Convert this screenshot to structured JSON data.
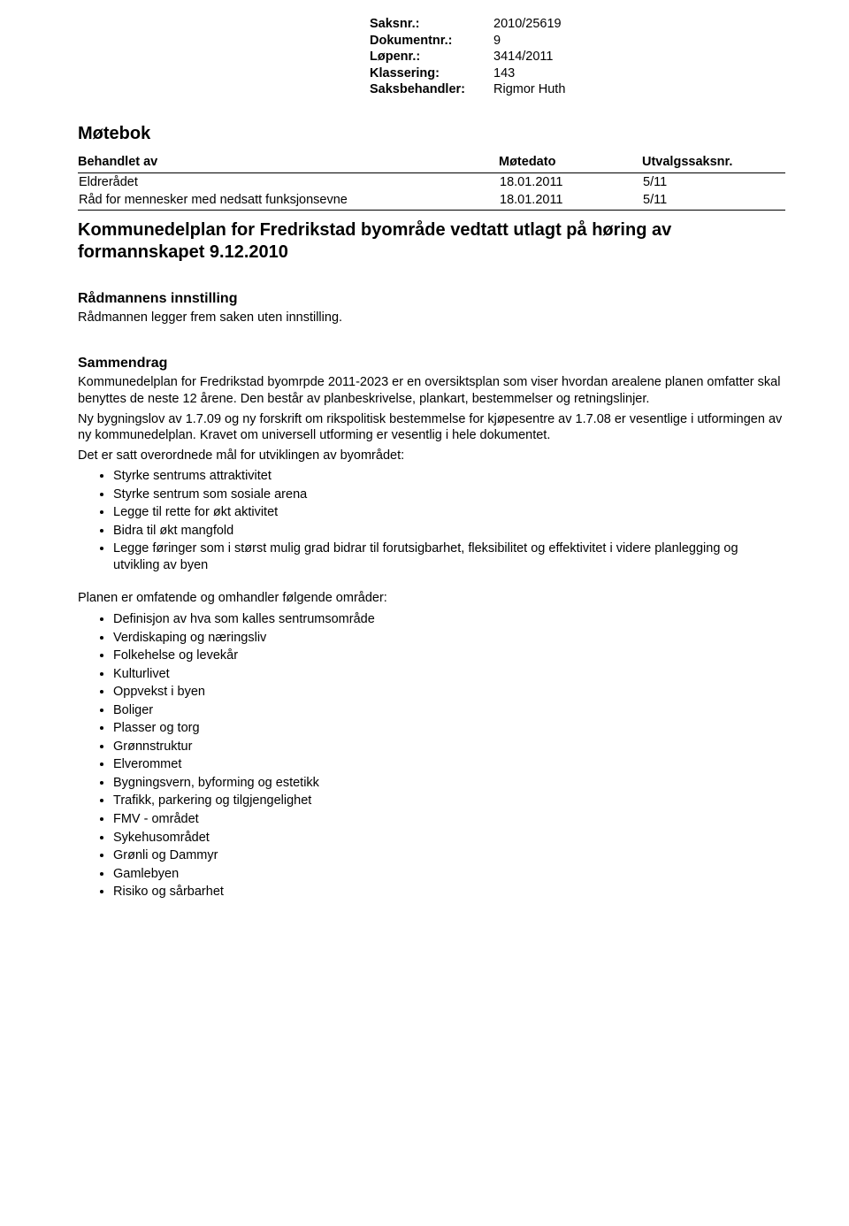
{
  "meta": {
    "rows": [
      {
        "label": "Saksnr.:",
        "value": "2010/25619"
      },
      {
        "label": "Dokumentnr.:",
        "value": "9"
      },
      {
        "label": "Løpenr.:",
        "value": "3414/2011"
      },
      {
        "label": "Klassering:",
        "value": "143"
      },
      {
        "label": "Saksbehandler:",
        "value": "Rigmor Huth"
      }
    ]
  },
  "motebok": {
    "heading": "Møtebok",
    "columns": [
      "Behandlet av",
      "Møtedato",
      "Utvalgssaksnr."
    ],
    "rows": [
      {
        "body": "Eldrerådet",
        "date": "18.01.2011",
        "caseno": "5/11"
      },
      {
        "body": "Råd for mennesker med nedsatt funksjonsevne",
        "date": "18.01.2011",
        "caseno": "5/11"
      }
    ]
  },
  "title": "Kommunedelplan for Fredrikstad byområde vedtatt utlagt på høring av formannskapet 9.12.2010",
  "innstilling": {
    "heading": "Rådmannens innstilling",
    "text": "Rådmannen legger frem saken uten innstilling."
  },
  "sammendrag": {
    "heading": "Sammendrag",
    "para1": "Kommunedelplan for Fredrikstad byomrpde 2011-2023 er en oversiktsplan som viser hvordan arealene planen omfatter skal benyttes de neste 12 årene. Den består av planbeskrivelse, plankart, bestemmelser og retningslinjer.",
    "para2": "Ny bygningslov av 1.7.09 og ny forskrift om rikspolitisk bestemmelse for kjøpesentre av 1.7.08 er vesentlige i utformingen av ny kommunedelplan. Kravet om universell utforming er vesentlig i hele dokumentet.",
    "para3": "Det er satt overordnede mål for utviklingen av byområdet:",
    "goals": [
      "Styrke sentrums attraktivitet",
      "Styrke sentrum som sosiale arena",
      "Legge til rette for økt aktivitet",
      "Bidra til økt mangfold",
      "Legge føringer som i størst mulig grad bidrar til forutsigbarhet, fleksibilitet og effektivitet i videre planlegging og utvikling av byen"
    ],
    "areas_intro": "Planen er omfatende og omhandler følgende områder:",
    "areas": [
      "Definisjon av hva som kalles sentrumsområde",
      "Verdiskaping og næringsliv",
      "Folkehelse og levekår",
      "Kulturlivet",
      "Oppvekst i byen",
      "Boliger",
      "Plasser og torg",
      "Grønnstruktur",
      "Elverommet",
      "Bygningsvern, byforming og estetikk",
      "Trafikk, parkering og tilgjengelighet",
      "FMV - området",
      "Sykehusområdet",
      "Grønli og Dammyr",
      "Gamlebyen",
      "Risiko og sårbarhet"
    ]
  }
}
